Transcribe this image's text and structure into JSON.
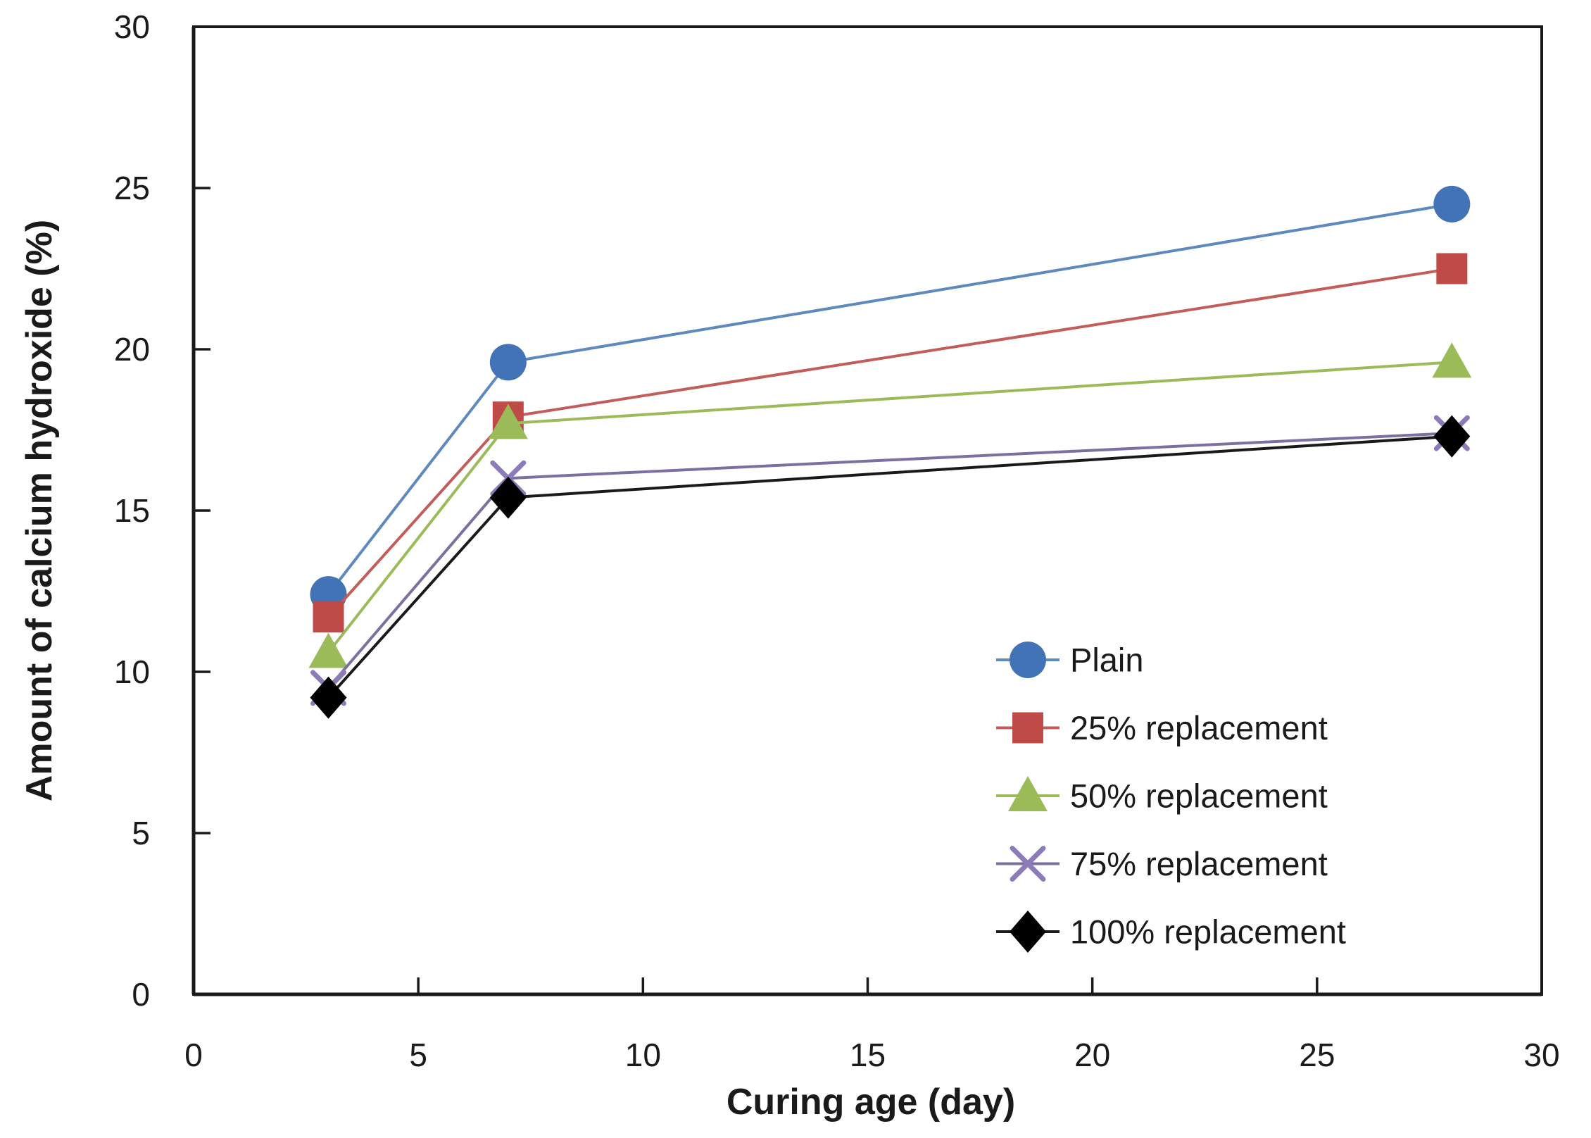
{
  "chart_data": {
    "type": "line",
    "title": "",
    "xlabel": "Curing age (day)",
    "ylabel": "Amount of calcium hydroxide (%)",
    "xlim": [
      0,
      30
    ],
    "ylim": [
      0,
      30
    ],
    "xticks": [
      0,
      5,
      10,
      15,
      20,
      25,
      30
    ],
    "yticks": [
      0,
      5,
      10,
      15,
      20,
      25,
      30
    ],
    "grid": false,
    "legend_position": "inside-lower-right",
    "axis_color": "#1a1a1a",
    "text_color": "#1a1a1a",
    "x": [
      3,
      7,
      28
    ],
    "series": [
      {
        "name": "Plain",
        "marker": "circle",
        "color": "#4273B7",
        "line_color": "#5E88BE",
        "values": [
          12.4,
          19.6,
          24.5
        ]
      },
      {
        "name": "25% replacement",
        "marker": "square",
        "color": "#BE4B48",
        "line_color": "#C25D5A",
        "values": [
          11.7,
          17.9,
          22.5
        ]
      },
      {
        "name": "50% replacement",
        "marker": "triangle",
        "color": "#9BBB59",
        "line_color": "#9BBB59",
        "values": [
          10.6,
          17.7,
          19.6
        ]
      },
      {
        "name": "75% replacement",
        "marker": "x",
        "color": "#8C7BB8",
        "line_color": "#7D6FA0",
        "values": [
          9.5,
          16.0,
          17.4
        ]
      },
      {
        "name": "100% replacement",
        "marker": "diamond",
        "color": "#000000",
        "line_color": "#1a1a1a",
        "values": [
          9.2,
          15.4,
          17.3
        ]
      }
    ]
  }
}
